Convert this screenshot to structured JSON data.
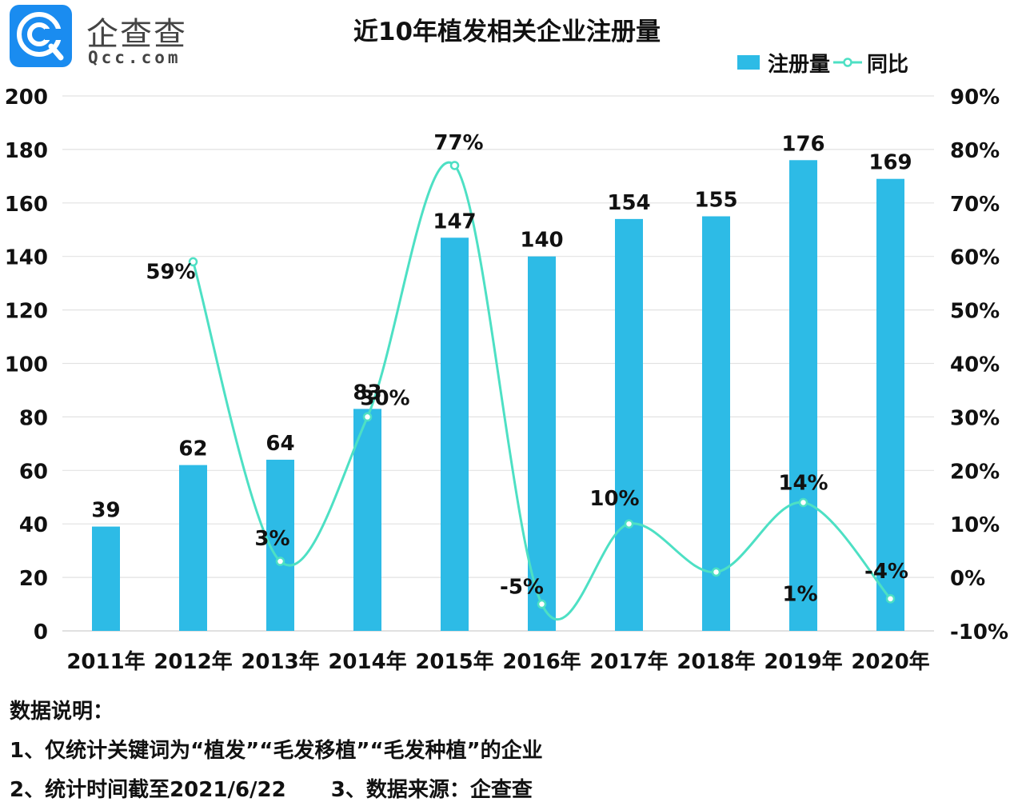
{
  "logo": {
    "icon_name": "qcc-logo-icon",
    "text_cn": "企查查",
    "text_en": "Qcc.com"
  },
  "legend": {
    "bar_label": "注册量",
    "line_label": "同比"
  },
  "chart_data": {
    "type": "bar+line",
    "title": "近10年植发相关企业注册量",
    "categories": [
      "2011年",
      "2012年",
      "2013年",
      "2014年",
      "2015年",
      "2016年",
      "2017年",
      "2018年",
      "2019年",
      "2020年"
    ],
    "series": [
      {
        "name": "注册量",
        "type": "bar",
        "axis": "left",
        "values": [
          39,
          62,
          64,
          83,
          147,
          140,
          154,
          155,
          176,
          169
        ],
        "labels": [
          "39",
          "62",
          "64",
          "83",
          "147",
          "140",
          "154",
          "155",
          "176",
          "169"
        ],
        "color": "#2dbbe6"
      },
      {
        "name": "同比",
        "type": "line",
        "smooth": true,
        "axis": "right",
        "values": [
          null,
          59,
          3,
          30,
          77,
          -5,
          10,
          1,
          14,
          -4
        ],
        "labels": [
          null,
          "59%",
          "3%",
          "30%",
          "77%",
          "-5%",
          "10%",
          "1%",
          "14%",
          "-4%"
        ],
        "color": "#4de0c4"
      }
    ],
    "left_axis": {
      "ylim": [
        0,
        200
      ],
      "ticks": [
        0,
        20,
        40,
        60,
        80,
        100,
        120,
        140,
        160,
        180,
        200
      ],
      "tick_labels": [
        "0",
        "20",
        "40",
        "60",
        "80",
        "100",
        "120",
        "140",
        "160",
        "180",
        "200"
      ]
    },
    "right_axis": {
      "ylim": [
        -10,
        90
      ],
      "ticks": [
        -10,
        0,
        10,
        20,
        30,
        40,
        50,
        60,
        70,
        80,
        90
      ],
      "tick_labels": [
        "-10%",
        "0%",
        "10%",
        "20%",
        "30%",
        "40%",
        "50%",
        "60%",
        "70%",
        "80%",
        "90%"
      ]
    },
    "grid": true,
    "legend_position": "top-right"
  },
  "notes": {
    "heading": "数据说明：",
    "line1": "1、仅统计关键词为“植发”“毛发移植”“毛发种植”的企业",
    "line2a": "2、统计时间截至2021/6/22",
    "line2b": "3、数据来源：企查查"
  }
}
